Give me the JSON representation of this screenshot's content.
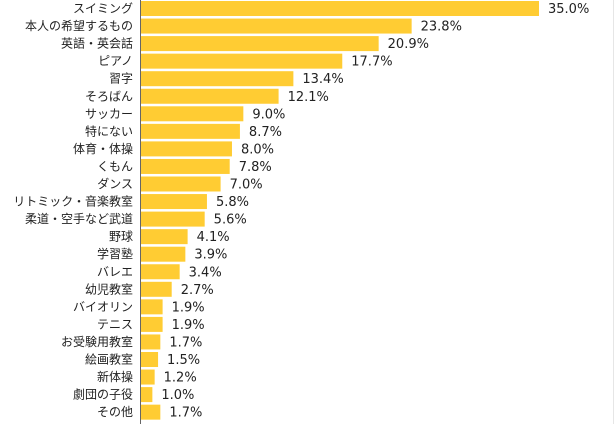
{
  "chart_data": {
    "type": "bar",
    "orientation": "horizontal",
    "categories": [
      "スイミング",
      "本人の希望するもの",
      "英語・英会話",
      "ピアノ",
      "習字",
      "そろばん",
      "サッカー",
      "特にない",
      "体育・体操",
      "くもん",
      "ダンス",
      "リトミック・音楽教室",
      "柔道・空手など武道",
      "野球",
      "学習塾",
      "バレエ",
      "幼児教室",
      "バイオリン",
      "テニス",
      "お受験用教室",
      "絵画教室",
      "新体操",
      "劇団の子役",
      "その他"
    ],
    "values": [
      35.0,
      23.8,
      20.9,
      17.7,
      13.4,
      12.1,
      9.0,
      8.7,
      8.0,
      7.8,
      7.0,
      5.8,
      5.6,
      4.1,
      3.9,
      3.4,
      2.7,
      1.9,
      1.9,
      1.7,
      1.5,
      1.2,
      1.0,
      1.7
    ],
    "value_labels": [
      "35.0%",
      "23.8%",
      "20.9%",
      "17.7%",
      "13.4%",
      "12.1%",
      "9.0%",
      "8.7%",
      "8.0%",
      "7.8%",
      "7.0%",
      "5.8%",
      "5.6%",
      "4.1%",
      "3.9%",
      "3.4%",
      "2.7%",
      "1.9%",
      "1.9%",
      "1.7%",
      "1.5%",
      "1.2%",
      "1.0%",
      "1.7%"
    ],
    "xlim": [
      0,
      35
    ],
    "bar_color": "#ffcc33",
    "axis_color": "#666666",
    "grid": false,
    "legend": "none"
  }
}
